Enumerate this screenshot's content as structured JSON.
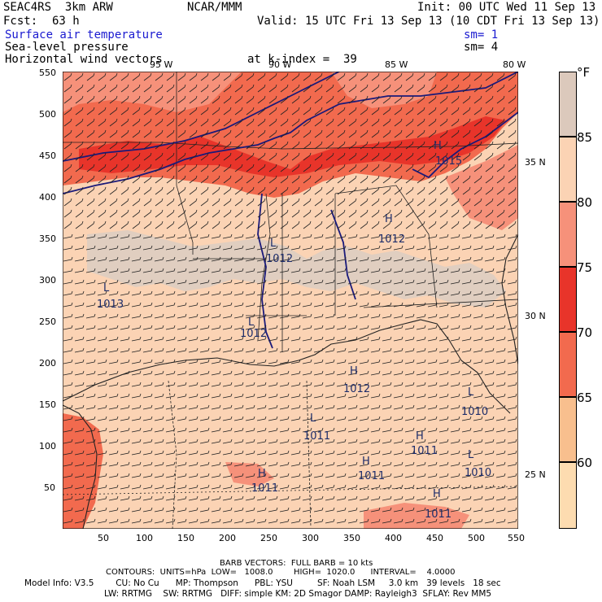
{
  "header": {
    "model": "SEAC4RS  3km ARW",
    "org": "NCAR/MMM",
    "init": "Init: 00 UTC Wed 11 Sep 13",
    "fcst_label": "Fcst:",
    "fcst_value": "63 h",
    "valid": "Valid: 15 UTC Fri 13 Sep 13 (10 CDT Fri 13 Sep 13)",
    "field1": "Surface air temperature",
    "field2": "Sea-level pressure",
    "field3": "Horizontal wind vectors",
    "sm1": "sm= 1",
    "sm2": "sm= 4",
    "k_index": "at k-index =  39"
  },
  "axes": {
    "y_ticks": [
      "550",
      "500",
      "450",
      "400",
      "350",
      "300",
      "250",
      "200",
      "150",
      "100",
      "50"
    ],
    "x_ticks": [
      "50",
      "100",
      "150",
      "200",
      "250",
      "300",
      "350",
      "400",
      "450",
      "500",
      "550"
    ],
    "top_lon": [
      "95 W",
      "90 W",
      "85 W",
      "80 W"
    ],
    "right_lat": [
      "35 N",
      "30 N",
      "25 N"
    ]
  },
  "legend": {
    "unit": "°F",
    "labels": [
      "85",
      "80",
      "75",
      "70",
      "65",
      "60"
    ],
    "colors": [
      "#dcc9bc",
      "#fbd3b4",
      "#f6917a",
      "#e8342a",
      "#f26a4e",
      "#f8bf8e",
      "#fddcb0"
    ]
  },
  "pressure_labels": [
    {
      "sym": "L",
      "val": "1013"
    },
    {
      "sym": "L",
      "val": "1012"
    },
    {
      "sym": "L",
      "val": "1012"
    },
    {
      "sym": "H",
      "val": "1012"
    },
    {
      "sym": "H",
      "val": "1012"
    },
    {
      "sym": "H",
      "val": "1015"
    },
    {
      "sym": "L",
      "val": "1011"
    },
    {
      "sym": "H",
      "val": "1011"
    },
    {
      "sym": "H",
      "val": "1011"
    },
    {
      "sym": "L",
      "val": "1010"
    },
    {
      "sym": "L",
      "val": "1010"
    },
    {
      "sym": "H",
      "val": "1011"
    },
    {
      "sym": "H",
      "val": "1011"
    }
  ],
  "footer": {
    "barb_title": "BARB VECTORS:  FULL BARB = 10 kts",
    "contours": "CONTOURS:  UNITS=hPa  LOW=   1008.0        HIGH=  1020.0      INTERVAL=    4.0000",
    "model_info_1": "Model Info: V3.5        CU: No Cu      MP: Thompson      PBL: YSU         SF: Noah LSM     3.0 km   39 levels   18 sec",
    "model_info_2": "LW: RRTMG    SW: RRTMG   DIFF: simple KM: 2D Smagor DAMP: Rayleigh3  SFLAY: Rev MM5"
  }
}
